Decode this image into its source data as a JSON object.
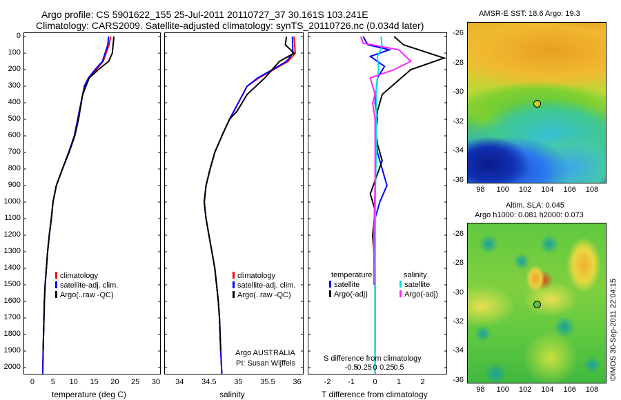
{
  "header": {
    "line1": "Argo profile: CS 5901622_155 25-Jul-2011 20110727_37 30.161S 103.241E",
    "line2": "Climatology: CARS2009. Satellite-adjusted climatology: synTS_20110726.nc (0.034d later)"
  },
  "colors": {
    "climatology": "#ff0000",
    "satellite": "#0000ff",
    "argo": "#000000",
    "salinity_sat": "#00e0e0",
    "salinity_argo": "#ff22ff"
  },
  "depth_ticks": [
    "0",
    "100",
    "200",
    "300",
    "400",
    "500",
    "600",
    "700",
    "800",
    "900",
    "1000",
    "1100",
    "1200",
    "1300",
    "1400",
    "1500",
    "1600",
    "1700",
    "1800",
    "1900",
    "2000"
  ],
  "panel1": {
    "xlabel": "temperature (deg C)",
    "xticks": [
      "0",
      "5",
      "10",
      "15",
      "20",
      "25",
      "30"
    ],
    "legend": [
      "climatology",
      "satellite-adj. clim.",
      "Argo(..raw -QC)"
    ]
  },
  "panel2": {
    "xlabel": "salinity",
    "xticks": [
      "34",
      "34.5",
      "35",
      "35.5",
      "36"
    ],
    "legend": [
      "climatology",
      "satellite-adj. clim.",
      "Argo(..raw -QC)"
    ],
    "note1": "Argo AUSTRALIA",
    "note2": "PI: Susan Wijffels"
  },
  "panel3": {
    "xlabel": "T difference from climatology",
    "xticks": [
      "-2",
      "-1",
      "0",
      "1",
      "2"
    ],
    "top_label": "S difference from climatology",
    "top_ticks": [
      "-0.5",
      "-0.25",
      "0",
      "0.25",
      "0.5"
    ],
    "legend_t_title": "temperature",
    "legend_s_title": "salinity",
    "legend_t": [
      "satellite",
      "Argo(-adj)"
    ],
    "legend_s": [
      "satellite",
      "Argo(-adj)"
    ]
  },
  "map1": {
    "title": "AMSR-E SST: 18.6 Argo: 19.3",
    "yticks": [
      "-26",
      "-28",
      "-30",
      "-32",
      "-34",
      "-36"
    ],
    "xticks": [
      "98",
      "100",
      "102",
      "104",
      "106",
      "108"
    ]
  },
  "map2": {
    "title1": "Altim. SLA: 0.045",
    "title2": "Argo h1000: 0.081 h2000: 0.073",
    "yticks": [
      "-26",
      "-28",
      "-30",
      "-32",
      "-34",
      "-36"
    ],
    "xticks": [
      "98",
      "100",
      "102",
      "104",
      "106",
      "108"
    ]
  },
  "side_stamp": "©IMOS 30-Sep-2011 22:04:15",
  "chart_data": [
    {
      "type": "line",
      "xlabel": "temperature (deg C)",
      "ylabel": "",
      "xlim": [
        -2,
        31
      ],
      "ylim": [
        2060,
        0
      ],
      "series": [
        {
          "name": "climatology",
          "x": [
            19.0,
            18.6,
            17.2,
            15.5,
            13.8,
            12.7,
            11.8,
            11.0,
            10.2,
            8.8,
            7.3,
            5.8,
            5.0,
            4.6,
            4.1,
            3.7,
            3.4,
            3.1,
            2.9,
            2.8,
            2.6,
            2.5
          ],
          "y": [
            0,
            50,
            150,
            200,
            250,
            300,
            400,
            500,
            600,
            700,
            800,
            900,
            1000,
            1100,
            1200,
            1300,
            1400,
            1500,
            1600,
            1700,
            1900,
            2050
          ]
        },
        {
          "name": "satellite-adj. clim.",
          "x": [
            18.5,
            18.3,
            17.0,
            15.2,
            13.6,
            12.6,
            11.8,
            11.0,
            10.2,
            8.8,
            7.3,
            5.8,
            5.0,
            4.6,
            4.1,
            3.7,
            3.4,
            3.1,
            2.9,
            2.8,
            2.6,
            2.5
          ],
          "y": [
            0,
            50,
            150,
            200,
            250,
            300,
            400,
            500,
            600,
            700,
            800,
            900,
            1000,
            1100,
            1200,
            1300,
            1400,
            1500,
            1600,
            1700,
            1900,
            2050
          ]
        },
        {
          "name": "Argo(..raw -QC)",
          "x": [
            19.8,
            19.6,
            19.4,
            18.5,
            16.0,
            13.8,
            12.2,
            11.2,
            10.3,
            8.9,
            7.3,
            5.8,
            5.0,
            4.6,
            4.1,
            3.7,
            3.4,
            3.1,
            2.9,
            2.8,
            2.6
          ],
          "y": [
            0,
            50,
            100,
            150,
            200,
            250,
            350,
            500,
            600,
            700,
            800,
            900,
            1000,
            1100,
            1200,
            1300,
            1400,
            1500,
            1600,
            1700,
            1900
          ]
        }
      ]
    },
    {
      "type": "line",
      "xlabel": "salinity",
      "xlim": [
        33.75,
        36.1
      ],
      "ylim": [
        2060,
        0
      ],
      "series": [
        {
          "name": "climatology",
          "x": [
            35.95,
            35.97,
            35.85,
            35.6,
            35.35,
            35.15,
            35.0,
            34.85,
            34.72,
            34.6,
            34.52,
            34.45,
            34.42,
            34.45,
            34.5,
            34.55,
            34.6,
            34.63,
            34.66,
            34.68,
            34.7,
            34.72
          ],
          "y": [
            0,
            100,
            150,
            200,
            250,
            300,
            400,
            500,
            600,
            700,
            800,
            900,
            1000,
            1100,
            1200,
            1300,
            1400,
            1500,
            1600,
            1700,
            1900,
            2050
          ]
        },
        {
          "name": "satellite-adj. clim.",
          "x": [
            35.92,
            35.93,
            35.82,
            35.58,
            35.33,
            35.15,
            35.0,
            34.85,
            34.72,
            34.6,
            34.52,
            34.45,
            34.42,
            34.45,
            34.5,
            34.55,
            34.6,
            34.63,
            34.66,
            34.68,
            34.7,
            34.72
          ],
          "y": [
            0,
            100,
            150,
            200,
            250,
            300,
            400,
            500,
            600,
            700,
            800,
            900,
            1000,
            1100,
            1200,
            1300,
            1400,
            1500,
            1600,
            1700,
            1900,
            2050
          ]
        },
        {
          "name": "Argo(..raw -QC)",
          "x": [
            35.82,
            35.8,
            35.95,
            35.7,
            35.45,
            35.15,
            34.98,
            34.85,
            34.72,
            34.6,
            34.52,
            34.45,
            34.42,
            34.45,
            34.5,
            34.55,
            34.6,
            34.63,
            34.66,
            34.68,
            34.7
          ],
          "y": [
            0,
            50,
            100,
            150,
            250,
            350,
            450,
            500,
            600,
            700,
            800,
            900,
            1000,
            1100,
            1200,
            1300,
            1400,
            1500,
            1600,
            1700,
            1900
          ]
        }
      ]
    },
    {
      "type": "line",
      "xlabel": "T difference from climatology",
      "xlim": [
        -2.8,
        3.0
      ],
      "ylim": [
        2060,
        0
      ],
      "series": [
        {
          "name": "temperature satellite",
          "x": [
            -0.5,
            -0.3,
            0.6,
            -0.2,
            0.4,
            0.1,
            0.0,
            0.1,
            0.0,
            0.1,
            0.3,
            0.5,
            0.2,
            0.0,
            0.0,
            0.0,
            0.0,
            0.0
          ],
          "y": [
            0,
            50,
            80,
            120,
            180,
            250,
            400,
            500,
            600,
            700,
            800,
            900,
            1000,
            1100,
            1300,
            1500,
            1800,
            2050
          ]
        },
        {
          "name": "temperature Argo(-adj)",
          "x": [
            0.8,
            1.2,
            2.9,
            1.5,
            1.1,
            0.3,
            0.1,
            0.0,
            0.1,
            0.3,
            -0.2,
            0.0,
            -0.1,
            0.0,
            0.0,
            0.0
          ],
          "y": [
            0,
            50,
            130,
            200,
            250,
            350,
            450,
            550,
            650,
            750,
            950,
            1050,
            1200,
            1400,
            1600,
            1900
          ]
        },
        {
          "name": "salinity satellite",
          "x": [
            0.25,
            0.3,
            0.1,
            0.15,
            0.05,
            0.05,
            0.05,
            0.02,
            0.02,
            0.0,
            0.0,
            0.0
          ],
          "y": [
            0,
            60,
            120,
            200,
            300,
            500,
            700,
            900,
            1100,
            1400,
            1700,
            2050
          ]
        },
        {
          "name": "salinity Argo(-adj)",
          "x": [
            -0.6,
            -0.5,
            1.0,
            1.5,
            0.8,
            -0.2,
            0.0,
            -0.1,
            0.0,
            0.0,
            -0.05,
            -0.05
          ],
          "y": [
            0,
            40,
            80,
            150,
            200,
            250,
            350,
            400,
            500,
            900,
            1200,
            1500
          ]
        }
      ]
    }
  ]
}
